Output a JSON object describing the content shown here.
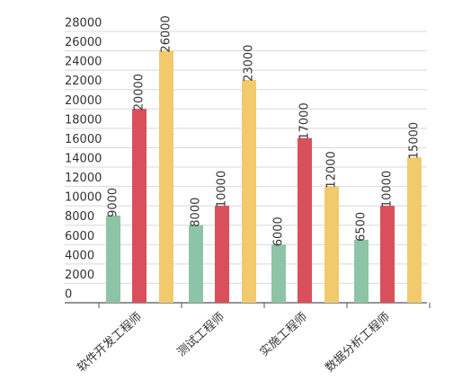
{
  "chart_data": {
    "type": "bar",
    "categories": [
      "软件开发工程师",
      "测试工程师",
      "实施工程师",
      "数据分析工程师"
    ],
    "series": [
      {
        "color": "#8dc4a8",
        "values": [
          9000,
          8000,
          6000,
          6500
        ]
      },
      {
        "color": "#d9505c",
        "values": [
          20000,
          10000,
          17000,
          10000
        ]
      },
      {
        "color": "#f2ca6c",
        "values": [
          26000,
          23000,
          12000,
          15000
        ]
      }
    ],
    "ylim": [
      0,
      28000
    ],
    "yticks": [
      0,
      2000,
      4000,
      6000,
      8000,
      10000,
      12000,
      14000,
      16000,
      18000,
      20000,
      22000,
      24000,
      26000,
      28000
    ],
    "grid": true
  }
}
